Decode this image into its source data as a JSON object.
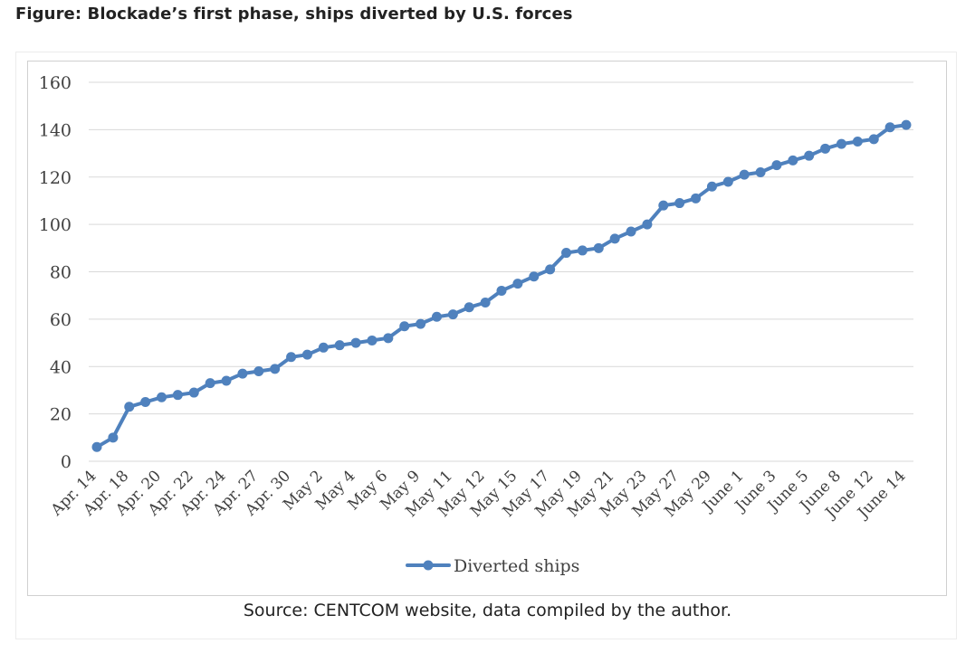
{
  "figure": {
    "title": "Figure: Blockade’s first phase, ships diverted by U.S. forces",
    "source": "Source: CENTCOM website, data compiled by the author."
  },
  "chart_data": {
    "type": "line",
    "title": "",
    "xlabel": "",
    "ylabel": "",
    "ylim": [
      0,
      160
    ],
    "yticks": [
      0,
      20,
      40,
      60,
      80,
      100,
      120,
      140,
      160
    ],
    "grid": true,
    "legend": "bottom",
    "x_tick_labels": [
      "Apr. 14",
      "Apr. 18",
      "Apr. 20",
      "Apr. 22",
      "Apr. 24",
      "Apr. 27",
      "Apr. 30",
      "May 2",
      "May 4",
      "May 6",
      "May 9",
      "May 11",
      "May 12",
      "May 15",
      "May 17",
      "May 19",
      "May 21",
      "May 23",
      "May 27",
      "May 29",
      "June 1",
      "June 3",
      "June 5",
      "June 8",
      "June 12",
      "June 14"
    ],
    "series": [
      {
        "name": "Diverted ships",
        "color": "#4f81bd",
        "values": [
          6,
          10,
          23,
          25,
          27,
          28,
          29,
          33,
          34,
          37,
          38,
          39,
          44,
          45,
          48,
          49,
          50,
          51,
          52,
          57,
          58,
          61,
          62,
          65,
          67,
          72,
          75,
          78,
          81,
          88,
          89,
          90,
          94,
          97,
          100,
          108,
          109,
          111,
          116,
          118,
          121,
          122,
          125,
          127,
          129,
          132,
          134,
          135,
          136,
          141,
          142
        ]
      }
    ]
  }
}
